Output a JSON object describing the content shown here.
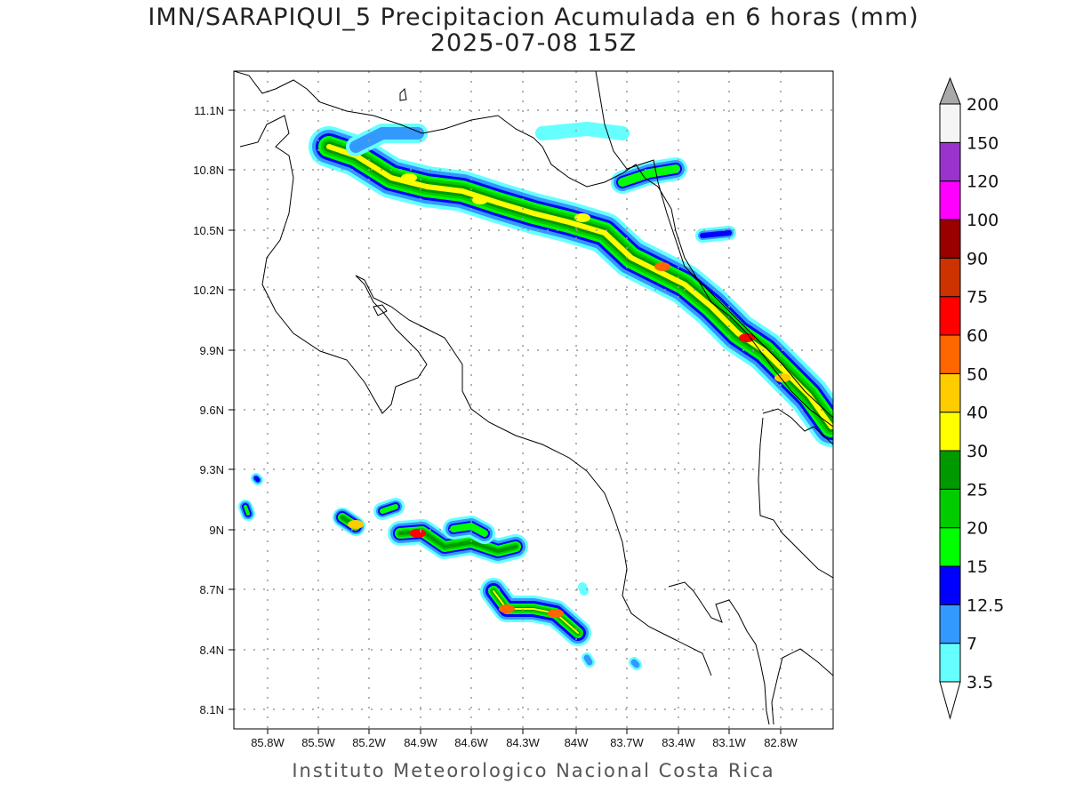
{
  "title": {
    "line1": "IMN/SARAPIQUI_5 Precipitacion Acumulada en 6 horas (mm)",
    "line2": "2025-07-08 15Z"
  },
  "footer": "Instituto Meteorologico Nacional Costa Rica",
  "axes": {
    "x_ticks": [
      "85.8W",
      "85.5W",
      "85.2W",
      "84.9W",
      "84.6W",
      "84.3W",
      "84W",
      "83.7W",
      "83.4W",
      "83.1W",
      "82.8W"
    ],
    "y_ticks": [
      "11.1N",
      "10.8N",
      "10.5N",
      "10.2N",
      "9.9N",
      "9.6N",
      "9.3N",
      "9N",
      "8.7N",
      "8.4N",
      "8.1N"
    ]
  },
  "colorbar": {
    "labels": [
      "3.5",
      "7",
      "12.5",
      "15",
      "20",
      "25",
      "30",
      "40",
      "50",
      "60",
      "75",
      "90",
      "100",
      "120",
      "150",
      "200"
    ],
    "colors": [
      "#66ffff",
      "#3399ff",
      "#0000ff",
      "#00ff00",
      "#00cc00",
      "#009900",
      "#ffff00",
      "#ffcc00",
      "#ff6600",
      "#ff0000",
      "#cc3300",
      "#990000",
      "#ff00ff",
      "#9933cc",
      "#f5f5f5"
    ],
    "over_color": "#a9a9a9",
    "under_color": "#ffffff"
  }
}
